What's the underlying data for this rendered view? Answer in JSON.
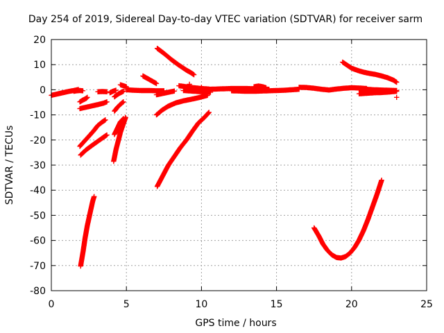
{
  "chart_data": {
    "type": "scatter",
    "title": "Day 254 of 2019, Sidereal Day-to-day VTEC variation (SDTVAR) for receiver sarm",
    "xlabel": "GPS time / hours",
    "ylabel": "SDTVAR / TECUs",
    "xlim": [
      0,
      25
    ],
    "ylim": [
      -80,
      20
    ],
    "xticks": [
      0,
      5,
      10,
      15,
      20,
      25
    ],
    "yticks": [
      -80,
      -70,
      -60,
      -50,
      -40,
      -30,
      -20,
      -10,
      0,
      10,
      20
    ],
    "grid": true,
    "legend": "none",
    "marker": "plus",
    "color": "#ff0000",
    "series": [
      {
        "points": [
          [
            0.0,
            -2.2
          ],
          [
            0.3,
            -1.8
          ],
          [
            0.6,
            -1.4
          ],
          [
            0.9,
            -1.0
          ],
          [
            1.2,
            -0.6
          ],
          [
            1.5,
            -0.3
          ],
          [
            1.8,
            0.1
          ]
        ]
      },
      {
        "points": [
          [
            1.5,
            -0.6
          ],
          [
            1.7,
            -0.4
          ],
          [
            1.9,
            -0.3
          ],
          [
            2.1,
            -0.4
          ]
        ]
      },
      {
        "points": [
          [
            1.9,
            -7.5
          ],
          [
            2.2,
            -7.1
          ],
          [
            2.5,
            -6.7
          ],
          [
            2.8,
            -6.3
          ],
          [
            3.1,
            -5.9
          ],
          [
            3.5,
            -5.3
          ],
          [
            3.7,
            -4.8
          ]
        ]
      },
      {
        "points": [
          [
            1.9,
            -4.8
          ],
          [
            2.1,
            -4.1
          ],
          [
            2.3,
            -3.5
          ],
          [
            2.4,
            -3.0
          ]
        ]
      },
      {
        "points": [
          [
            1.9,
            -22.5
          ],
          [
            2.2,
            -20.5
          ],
          [
            2.5,
            -18.5
          ],
          [
            2.8,
            -16.5
          ],
          [
            3.1,
            -14.2
          ],
          [
            3.4,
            -12.8
          ],
          [
            3.6,
            -12.0
          ]
        ]
      },
      {
        "points": [
          [
            1.95,
            -26.0
          ],
          [
            2.3,
            -24.0
          ],
          [
            2.7,
            -22.2
          ],
          [
            3.1,
            -20.5
          ],
          [
            3.5,
            -18.8
          ],
          [
            3.7,
            -18.0
          ]
        ]
      },
      {
        "points": [
          [
            1.95,
            -70.2
          ],
          [
            2.1,
            -65.0
          ],
          [
            2.25,
            -59.0
          ],
          [
            2.4,
            -54.0
          ],
          [
            2.6,
            -48.5
          ],
          [
            2.75,
            -44.5
          ],
          [
            2.85,
            -42.5
          ]
        ]
      },
      {
        "points": [
          [
            3.1,
            -0.8
          ],
          [
            3.4,
            -0.7
          ],
          [
            3.7,
            -0.8
          ]
        ]
      },
      {
        "points": [
          [
            3.9,
            -1.2
          ],
          [
            4.1,
            -0.6
          ],
          [
            4.3,
            -0.2
          ]
        ]
      },
      {
        "points": [
          [
            4.2,
            -2.8
          ],
          [
            4.5,
            -1.5
          ],
          [
            4.8,
            -0.6
          ]
        ]
      },
      {
        "points": [
          [
            4.2,
            -8.5
          ],
          [
            4.4,
            -7.0
          ],
          [
            4.6,
            -5.8
          ],
          [
            4.8,
            -4.8
          ]
        ]
      },
      {
        "points": [
          [
            4.2,
            -17.8
          ],
          [
            4.4,
            -15.3
          ],
          [
            4.6,
            -12.8
          ],
          [
            4.8,
            -11.5
          ]
        ]
      },
      {
        "points": [
          [
            4.15,
            -28.5
          ],
          [
            4.3,
            -24.0
          ],
          [
            4.45,
            -20.5
          ],
          [
            4.6,
            -17.0
          ],
          [
            4.8,
            -13.5
          ],
          [
            4.95,
            -11.0
          ]
        ]
      },
      {
        "points": [
          [
            4.6,
            2.0
          ],
          [
            4.8,
            1.6
          ],
          [
            5.0,
            1.2
          ]
        ]
      },
      {
        "points": [
          [
            5.0,
            0.0
          ],
          [
            5.5,
            -0.2
          ],
          [
            6.0,
            -0.3
          ],
          [
            6.5,
            -0.3
          ],
          [
            7.0,
            -0.4
          ],
          [
            7.5,
            -0.4
          ]
        ]
      },
      {
        "points": [
          [
            6.1,
            5.5
          ],
          [
            6.4,
            4.5
          ],
          [
            6.7,
            3.5
          ],
          [
            7.0,
            2.5
          ]
        ]
      },
      {
        "points": [
          [
            7.0,
            -2.0
          ],
          [
            7.4,
            -1.5
          ],
          [
            7.8,
            -1.0
          ],
          [
            8.2,
            -0.5
          ]
        ]
      },
      {
        "points": [
          [
            7.0,
            -10.0
          ],
          [
            7.4,
            -8.0
          ],
          [
            7.8,
            -6.5
          ],
          [
            8.3,
            -5.2
          ],
          [
            8.8,
            -4.4
          ],
          [
            9.3,
            -3.8
          ],
          [
            9.7,
            -3.3
          ],
          [
            10.1,
            -2.7
          ],
          [
            10.4,
            -2.2
          ]
        ]
      },
      {
        "points": [
          [
            7.05,
            16.5
          ],
          [
            7.5,
            14.5
          ],
          [
            8.0,
            12.0
          ],
          [
            8.5,
            9.8
          ],
          [
            9.0,
            7.8
          ],
          [
            9.3,
            6.8
          ],
          [
            9.5,
            6.0
          ]
        ]
      },
      {
        "points": [
          [
            7.05,
            -38.5
          ],
          [
            7.4,
            -34.5
          ],
          [
            7.8,
            -30.0
          ],
          [
            8.2,
            -26.5
          ],
          [
            8.6,
            -23.0
          ],
          [
            9.0,
            -20.0
          ],
          [
            9.4,
            -16.5
          ],
          [
            9.8,
            -13.2
          ],
          [
            10.2,
            -11.0
          ],
          [
            10.5,
            -9.0
          ]
        ]
      },
      {
        "points": [
          [
            8.5,
            1.6
          ],
          [
            9.0,
            1.2
          ],
          [
            9.5,
            0.8
          ],
          [
            10.0,
            0.5
          ],
          [
            10.5,
            0.3
          ]
        ]
      },
      {
        "points": [
          [
            8.8,
            -0.3
          ],
          [
            9.3,
            -0.5
          ],
          [
            9.8,
            -0.7
          ],
          [
            10.3,
            -0.9
          ],
          [
            10.6,
            -1.0
          ]
        ]
      },
      {
        "points": [
          [
            10.5,
            0.2
          ],
          [
            11.0,
            0.3
          ],
          [
            11.5,
            0.4
          ],
          [
            12.0,
            0.5
          ],
          [
            12.5,
            0.5
          ],
          [
            13.0,
            0.5
          ],
          [
            13.5,
            0.4
          ],
          [
            14.0,
            0.3
          ],
          [
            14.5,
            0.2
          ]
        ]
      },
      {
        "points": [
          [
            12.0,
            -0.4
          ],
          [
            12.5,
            -0.5
          ],
          [
            13.0,
            -0.6
          ],
          [
            13.5,
            -0.6
          ],
          [
            14.0,
            -0.5
          ]
        ]
      },
      {
        "points": [
          [
            13.5,
            1.2
          ],
          [
            13.8,
            1.5
          ],
          [
            14.1,
            1.2
          ],
          [
            14.3,
            0.8
          ]
        ]
      },
      {
        "points": [
          [
            14.0,
            -0.5
          ],
          [
            14.5,
            -0.4
          ],
          [
            15.0,
            -0.3
          ],
          [
            15.5,
            -0.2
          ],
          [
            16.0,
            0.0
          ],
          [
            16.5,
            0.2
          ]
        ]
      },
      {
        "points": [
          [
            16.5,
            1.0
          ],
          [
            17.0,
            0.9
          ],
          [
            17.5,
            0.6
          ],
          [
            18.0,
            0.2
          ],
          [
            18.5,
            -0.1
          ],
          [
            19.0,
            0.3
          ],
          [
            19.5,
            0.6
          ],
          [
            20.0,
            0.8
          ],
          [
            20.5,
            0.7
          ],
          [
            21.0,
            0.5
          ]
        ]
      },
      {
        "points": [
          [
            19.4,
            11.0
          ],
          [
            19.7,
            9.8
          ],
          [
            20.0,
            8.6
          ],
          [
            20.4,
            7.7
          ],
          [
            20.8,
            7.0
          ],
          [
            21.2,
            6.5
          ],
          [
            21.6,
            6.1
          ],
          [
            22.0,
            5.5
          ],
          [
            22.4,
            4.8
          ],
          [
            22.8,
            3.8
          ],
          [
            23.0,
            3.0
          ]
        ]
      },
      {
        "points": [
          [
            20.5,
            -1.6
          ],
          [
            21.0,
            -1.4
          ],
          [
            21.5,
            -1.2
          ],
          [
            22.0,
            -1.1
          ],
          [
            22.5,
            -0.9
          ],
          [
            23.0,
            -0.6
          ]
        ]
      },
      {
        "points": [
          [
            20.5,
            0.4
          ],
          [
            21.0,
            0.2
          ],
          [
            21.5,
            0.0
          ],
          [
            22.0,
            -0.1
          ],
          [
            22.5,
            -0.2
          ],
          [
            23.0,
            -0.3
          ]
        ]
      },
      {
        "points": [
          [
            17.5,
            -55.0
          ],
          [
            17.8,
            -58.0
          ],
          [
            18.1,
            -61.5
          ],
          [
            18.4,
            -64.0
          ],
          [
            18.7,
            -65.8
          ],
          [
            19.0,
            -66.8
          ],
          [
            19.3,
            -67.0
          ],
          [
            19.6,
            -66.4
          ],
          [
            19.9,
            -65.0
          ],
          [
            20.2,
            -62.8
          ],
          [
            20.5,
            -59.8
          ],
          [
            20.8,
            -56.0
          ],
          [
            21.1,
            -51.5
          ],
          [
            21.4,
            -46.5
          ],
          [
            21.7,
            -41.5
          ],
          [
            22.0,
            -36.0
          ]
        ]
      },
      {
        "points": [
          [
            23.0,
            -3.0
          ]
        ]
      },
      {
        "points": [
          [
            9.2,
            2.2
          ]
        ]
      },
      {
        "points": [
          [
            10.0,
            1.0
          ]
        ]
      }
    ]
  }
}
